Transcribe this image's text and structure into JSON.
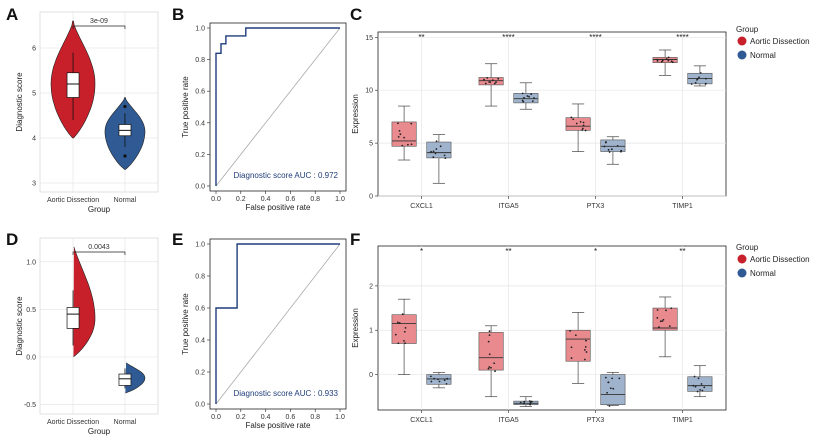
{
  "colors": {
    "aortic_dark": "#c8202a",
    "normal_dark": "#2f5a93",
    "aortic_box": "#e98a8e",
    "normal_box": "#9fb3cd",
    "roc": "#1f3d7a",
    "grid": "#e6e6e6"
  },
  "chart_data": [
    {
      "panel": "A",
      "type": "violin",
      "categories": [
        "Aortic Dissection",
        "Normal"
      ],
      "xlabel": "Group",
      "ylabel": "Diagnostic score",
      "ylim": [
        2.8,
        6.8
      ],
      "yticks": [
        3,
        4,
        5,
        6
      ],
      "pvalue": "3e-09",
      "violins": [
        {
          "group": "Aortic Dissection",
          "min": 4.0,
          "max": 6.6,
          "q1": 4.9,
          "median": 5.2,
          "q3": 5.45,
          "whisker_low": 4.4,
          "whisker_high": 5.9,
          "mode": 5.2,
          "outliers": []
        },
        {
          "group": "Normal",
          "min": 3.3,
          "max": 4.9,
          "q1": 4.05,
          "median": 4.17,
          "q3": 4.3,
          "whisker_low": 3.8,
          "whisker_high": 4.55,
          "mode": 4.15,
          "outliers": [
            3.6,
            4.7
          ]
        }
      ]
    },
    {
      "panel": "B",
      "type": "line",
      "xlabel": "False positive rate",
      "ylabel": "True positive rate",
      "xlim": [
        0,
        1
      ],
      "ylim": [
        0,
        1
      ],
      "ticks": [
        "0.0",
        "0.2",
        "0.4",
        "0.6",
        "0.8",
        "1.0"
      ],
      "auc_label": "Diagnostic score AUC : 0.972",
      "roc_x": [
        0,
        0,
        0.04,
        0.04,
        0.08,
        0.08,
        0.24,
        0.24,
        1.0
      ],
      "roc_y": [
        0,
        0.84,
        0.84,
        0.9,
        0.9,
        0.95,
        0.95,
        1.0,
        1.0
      ]
    },
    {
      "panel": "C",
      "type": "box",
      "categories": [
        "CXCL1",
        "ITGA5",
        "PTX3",
        "TIMP1"
      ],
      "ylabel": "Expression",
      "ylim": [
        0,
        15.5
      ],
      "yticks": [
        0,
        5,
        10,
        15
      ],
      "significance": [
        "**",
        "****",
        "****",
        "****"
      ],
      "legend_title": "Group",
      "legend": [
        "Aortic Dissection",
        "Normal"
      ],
      "series": [
        {
          "name": "Aortic Dissection",
          "boxes": [
            {
              "low": 3.4,
              "q1": 4.7,
              "median": 5.2,
              "q3": 7.0,
              "high": 8.5
            },
            {
              "low": 8.5,
              "q1": 10.5,
              "median": 10.9,
              "q3": 11.2,
              "high": 12.5
            },
            {
              "low": 4.2,
              "q1": 6.2,
              "median": 6.6,
              "q3": 7.4,
              "high": 8.7
            },
            {
              "low": 11.4,
              "q1": 12.6,
              "median": 12.9,
              "q3": 13.1,
              "high": 13.8
            }
          ]
        },
        {
          "name": "Normal",
          "boxes": [
            {
              "low": 1.2,
              "q1": 3.6,
              "median": 4.1,
              "q3": 5.1,
              "high": 5.8
            },
            {
              "low": 8.2,
              "q1": 8.8,
              "median": 9.2,
              "q3": 9.7,
              "high": 10.7
            },
            {
              "low": 3.0,
              "q1": 4.2,
              "median": 4.7,
              "q3": 5.3,
              "high": 5.6
            },
            {
              "low": 10.4,
              "q1": 10.6,
              "median": 11.1,
              "q3": 11.6,
              "high": 12.3
            }
          ]
        }
      ]
    },
    {
      "panel": "D",
      "type": "violin",
      "categories": [
        "Aortic Dissection",
        "Normal"
      ],
      "xlabel": "Group",
      "ylabel": "Diagnostic score",
      "ylim": [
        -0.6,
        1.25
      ],
      "yticks": [
        -0.5,
        0.0,
        0.5,
        1.0
      ],
      "ytick_labels": [
        "-0.5",
        "0.0",
        "0.5",
        "1.0"
      ],
      "pvalue": "0.0043",
      "violins": [
        {
          "group": "Aortic Dissection",
          "min": 0.0,
          "max": 1.2,
          "q1": 0.3,
          "median": 0.45,
          "q3": 0.52,
          "whisker_low": 0.12,
          "whisker_high": 0.7,
          "mode": 0.4,
          "outliers": []
        },
        {
          "group": "Normal",
          "min": -0.38,
          "max": -0.05,
          "q1": -0.3,
          "median": -0.23,
          "q3": -0.18,
          "whisker_low": -0.33,
          "whisker_high": -0.12,
          "mode": -0.22,
          "outliers": []
        }
      ]
    },
    {
      "panel": "E",
      "type": "line",
      "xlabel": "False positive rate",
      "ylabel": "True positive rate",
      "xlim": [
        0,
        1
      ],
      "ylim": [
        0,
        1
      ],
      "ticks": [
        "0.0",
        "0.2",
        "0.4",
        "0.6",
        "0.8",
        "1.0"
      ],
      "auc_label": "Diagnostic score AUC : 0.933",
      "roc_x": [
        0,
        0,
        0.17,
        0.17,
        1.0
      ],
      "roc_y": [
        0,
        0.6,
        0.6,
        1.0,
        1.0
      ]
    },
    {
      "panel": "F",
      "type": "box",
      "categories": [
        "CXCL1",
        "ITGA5",
        "PTX3",
        "TIMP1"
      ],
      "ylabel": "Expression",
      "ylim": [
        -0.8,
        2.9
      ],
      "yticks": [
        0,
        1,
        2
      ],
      "significance": [
        "*",
        "**",
        "*",
        "**"
      ],
      "legend_title": "Group",
      "legend": [
        "Aortic Dissection",
        "Normal"
      ],
      "series": [
        {
          "name": "Aortic Dissection",
          "boxes": [
            {
              "low": 0.0,
              "q1": 0.7,
              "median": 1.15,
              "q3": 1.35,
              "high": 1.7
            },
            {
              "low": -0.5,
              "q1": 0.1,
              "median": 0.38,
              "q3": 0.95,
              "high": 1.1
            },
            {
              "low": -0.2,
              "q1": 0.3,
              "median": 0.8,
              "q3": 1.0,
              "high": 1.4
            },
            {
              "low": 0.4,
              "q1": 1.0,
              "median": 1.05,
              "q3": 1.5,
              "high": 1.75
            }
          ]
        },
        {
          "name": "Normal",
          "boxes": [
            {
              "low": -0.3,
              "q1": -0.22,
              "median": -0.1,
              "q3": 0.0,
              "high": 0.05
            },
            {
              "low": -0.72,
              "q1": -0.68,
              "median": -0.65,
              "q3": -0.6,
              "high": -0.5
            },
            {
              "low": -0.7,
              "q1": -0.68,
              "median": -0.45,
              "q3": 0.0,
              "high": 0.05
            },
            {
              "low": -0.5,
              "q1": -0.38,
              "median": -0.25,
              "q3": -0.05,
              "high": 0.2
            }
          ]
        }
      ]
    }
  ]
}
